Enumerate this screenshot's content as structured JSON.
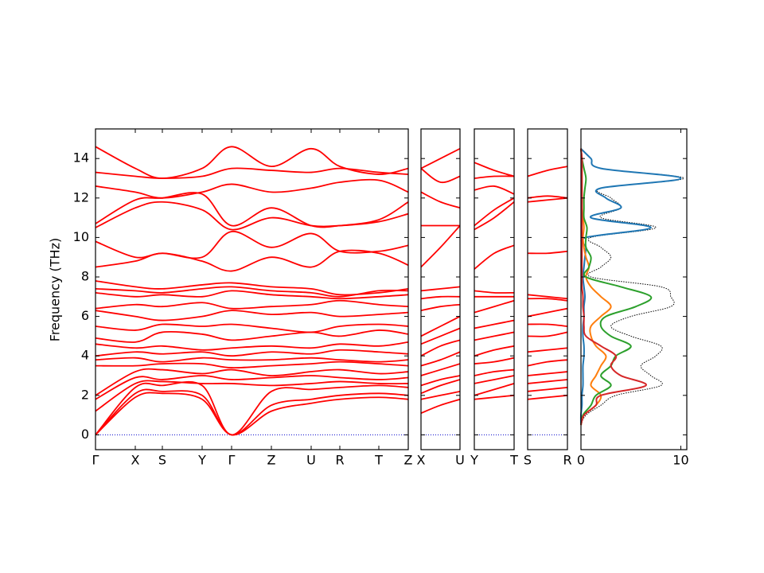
{
  "chart_data": {
    "type": "line",
    "ylabel": "Frequency (THz)",
    "ylim": [
      -0.75,
      15.5
    ],
    "yticks": [
      0,
      2,
      4,
      6,
      8,
      10,
      12,
      14
    ],
    "band_color": "#ff0000",
    "zero_line_color": "#0000cc",
    "panels": [
      {
        "x": [
          0,
          0.5,
          0.84,
          1.34,
          1.71,
          2.21,
          2.71,
          3.07,
          3.56,
          3.93
        ],
        "xlim": [
          0,
          3.93
        ],
        "xticks": [
          {
            "value": 0,
            "label": "Γ"
          },
          {
            "value": 0.5,
            "label": "X"
          },
          {
            "value": 0.84,
            "label": "S"
          },
          {
            "value": 1.34,
            "label": "Y"
          },
          {
            "value": 1.71,
            "label": "Γ"
          },
          {
            "value": 2.21,
            "label": "Z"
          },
          {
            "value": 2.71,
            "label": "U"
          },
          {
            "value": 3.07,
            "label": "R"
          },
          {
            "value": 3.56,
            "label": "T"
          },
          {
            "value": 3.93,
            "label": "Z"
          }
        ],
        "series": [
          {
            "values": [
              0,
              1.9,
              2.1,
              1.8,
              0,
              1.2,
              1.6,
              1.8,
              1.9,
              1.8
            ]
          },
          {
            "values": [
              0,
              2.1,
              2.2,
              2.0,
              0,
              1.5,
              1.8,
              2.0,
              2.1,
              2.0
            ]
          },
          {
            "values": [
              0,
              2.4,
              2.5,
              2.5,
              0,
              2.2,
              2.3,
              2.4,
              2.5,
              2.4
            ]
          },
          {
            "values": [
              1.2,
              2.6,
              2.7,
              2.6,
              2.6,
              2.5,
              2.6,
              2.7,
              2.6,
              2.6
            ]
          },
          {
            "values": [
              1.8,
              2.9,
              2.8,
              3.0,
              2.8,
              2.9,
              3.0,
              2.9,
              2.8,
              2.9
            ]
          },
          {
            "values": [
              2.0,
              3.2,
              3.3,
              3.1,
              3.3,
              3.0,
              3.2,
              3.3,
              3.1,
              3.2
            ]
          },
          {
            "values": [
              3.5,
              3.5,
              3.6,
              3.6,
              3.4,
              3.5,
              3.6,
              3.7,
              3.6,
              3.5
            ]
          },
          {
            "values": [
              3.8,
              3.9,
              3.7,
              3.9,
              3.8,
              3.8,
              3.9,
              3.8,
              3.7,
              3.8
            ]
          },
          {
            "values": [
              4.0,
              4.2,
              4.1,
              4.2,
              4.0,
              4.2,
              4.1,
              4.3,
              4.2,
              4.1
            ]
          },
          {
            "values": [
              4.6,
              4.4,
              4.5,
              4.3,
              4.4,
              4.5,
              4.4,
              4.6,
              4.5,
              4.7
            ]
          },
          {
            "values": [
              4.9,
              4.7,
              5.2,
              5.1,
              4.8,
              5.0,
              5.2,
              5.0,
              5.3,
              5.1
            ]
          },
          {
            "values": [
              5.5,
              5.3,
              5.6,
              5.5,
              5.6,
              5.4,
              5.2,
              5.5,
              5.6,
              5.5
            ]
          },
          {
            "values": [
              6.3,
              6.0,
              5.8,
              6.0,
              6.3,
              6.1,
              6.2,
              6.0,
              6.1,
              6.2
            ]
          },
          {
            "values": [
              6.4,
              6.6,
              6.5,
              6.7,
              6.4,
              6.5,
              6.6,
              6.8,
              6.6,
              6.5
            ]
          },
          {
            "values": [
              7.2,
              7.0,
              7.1,
              7.0,
              7.3,
              7.1,
              7.0,
              6.9,
              7.0,
              7.1
            ]
          },
          {
            "values": [
              7.4,
              7.3,
              7.2,
              7.4,
              7.5,
              7.3,
              7.2,
              7.0,
              7.3,
              7.3
            ]
          },
          {
            "values": [
              7.8,
              7.5,
              7.4,
              7.6,
              7.7,
              7.5,
              7.4,
              7.1,
              7.2,
              7.4
            ]
          },
          {
            "values": [
              8.5,
              8.8,
              9.2,
              8.8,
              8.3,
              9.0,
              8.5,
              9.3,
              9.2,
              8.6
            ]
          },
          {
            "values": [
              9.8,
              9.0,
              9.2,
              9.0,
              10.3,
              9.5,
              10.2,
              9.3,
              9.3,
              9.6
            ]
          },
          {
            "values": [
              10.5,
              11.5,
              11.8,
              11.4,
              10.4,
              11.0,
              10.6,
              10.6,
              10.8,
              11.2
            ]
          },
          {
            "values": [
              10.7,
              11.9,
              12.0,
              12.2,
              10.6,
              11.5,
              10.6,
              10.6,
              10.9,
              11.8
            ]
          },
          {
            "values": [
              12.6,
              12.3,
              12.0,
              12.3,
              12.7,
              12.3,
              12.5,
              12.8,
              12.9,
              12.3
            ]
          },
          {
            "values": [
              13.3,
              13.1,
              13.0,
              13.1,
              13.5,
              13.4,
              13.3,
              13.5,
              13.3,
              13.2
            ]
          },
          {
            "values": [
              14.6,
              13.5,
              13.0,
              13.5,
              14.6,
              13.6,
              14.5,
              13.6,
              13.2,
              13.5
            ]
          }
        ]
      },
      {
        "x": [
          0,
          0.245,
          0.49
        ],
        "xlim": [
          0,
          0.49
        ],
        "xticks": [
          {
            "value": 0,
            "label": "X"
          },
          {
            "value": 0.49,
            "label": "U"
          }
        ],
        "series": [
          {
            "values": [
              1.1,
              1.5,
              1.8
            ]
          },
          {
            "values": [
              1.8,
              2.0,
              2.2
            ]
          },
          {
            "values": [
              2.1,
              2.5,
              2.8
            ]
          },
          {
            "values": [
              2.5,
              2.8,
              3.0
            ]
          },
          {
            "values": [
              3.0,
              3.3,
              3.6
            ]
          },
          {
            "values": [
              3.5,
              3.8,
              4.2
            ]
          },
          {
            "values": [
              4.0,
              4.5,
              4.8
            ]
          },
          {
            "values": [
              4.6,
              5.0,
              5.4
            ]
          },
          {
            "values": [
              5.0,
              5.5,
              6.0
            ]
          },
          {
            "values": [
              6.3,
              6.5,
              6.6
            ]
          },
          {
            "values": [
              6.9,
              7.0,
              7.0
            ]
          },
          {
            "values": [
              7.3,
              7.4,
              7.5
            ]
          },
          {
            "values": [
              8.5,
              9.5,
              10.6
            ]
          },
          {
            "values": [
              10.6,
              10.6,
              10.6
            ]
          },
          {
            "values": [
              12.3,
              11.8,
              11.5
            ]
          },
          {
            "values": [
              13.5,
              12.8,
              13.1
            ]
          },
          {
            "values": [
              13.5,
              14.0,
              14.5
            ]
          }
        ]
      },
      {
        "x": [
          0,
          0.245,
          0.49
        ],
        "xlim": [
          0,
          0.49
        ],
        "xticks": [
          {
            "value": 0,
            "label": "Y"
          },
          {
            "value": 0.49,
            "label": "T"
          }
        ],
        "series": [
          {
            "values": [
              1.8,
              1.9,
              2.0
            ]
          },
          {
            "values": [
              2.0,
              2.3,
              2.6
            ]
          },
          {
            "values": [
              2.6,
              2.8,
              3.0
            ]
          },
          {
            "values": [
              3.0,
              3.2,
              3.3
            ]
          },
          {
            "values": [
              3.6,
              3.7,
              3.9
            ]
          },
          {
            "values": [
              4.0,
              4.3,
              4.5
            ]
          },
          {
            "values": [
              4.8,
              5.0,
              5.2
            ]
          },
          {
            "values": [
              5.4,
              5.6,
              5.8
            ]
          },
          {
            "values": [
              6.2,
              6.5,
              6.8
            ]
          },
          {
            "values": [
              7.0,
              7.0,
              7.0
            ]
          },
          {
            "values": [
              7.3,
              7.2,
              7.2
            ]
          },
          {
            "values": [
              8.4,
              9.2,
              9.6
            ]
          },
          {
            "values": [
              10.4,
              11.0,
              11.8
            ]
          },
          {
            "values": [
              10.6,
              11.4,
              12.0
            ]
          },
          {
            "values": [
              12.4,
              12.6,
              12.2
            ]
          },
          {
            "values": [
              13.0,
              13.1,
              13.1
            ]
          },
          {
            "values": [
              13.8,
              13.4,
              13.1
            ]
          }
        ]
      },
      {
        "x": [
          0,
          0.245,
          0.49
        ],
        "xlim": [
          0,
          0.49
        ],
        "xticks": [
          {
            "value": 0,
            "label": "S"
          },
          {
            "value": 0.49,
            "label": "R"
          }
        ],
        "series": [
          {
            "values": [
              1.8,
              1.9,
              2.0
            ]
          },
          {
            "values": [
              2.2,
              2.3,
              2.4
            ]
          },
          {
            "values": [
              2.6,
              2.7,
              2.8
            ]
          },
          {
            "values": [
              3.0,
              3.1,
              3.2
            ]
          },
          {
            "values": [
              3.5,
              3.7,
              3.8
            ]
          },
          {
            "values": [
              4.2,
              4.3,
              4.4
            ]
          },
          {
            "values": [
              5.0,
              5.0,
              5.2
            ]
          },
          {
            "values": [
              5.6,
              5.6,
              5.5
            ]
          },
          {
            "values": [
              6.0,
              6.2,
              6.4
            ]
          },
          {
            "values": [
              6.9,
              6.9,
              6.8
            ]
          },
          {
            "values": [
              7.1,
              7.0,
              6.9
            ]
          },
          {
            "values": [
              9.2,
              9.2,
              9.3
            ]
          },
          {
            "values": [
              11.8,
              11.9,
              12.0
            ]
          },
          {
            "values": [
              12.0,
              12.1,
              12.0
            ]
          },
          {
            "values": [
              13.1,
              13.4,
              13.6
            ]
          }
        ]
      }
    ],
    "dos": {
      "xlim": [
        0,
        10.6
      ],
      "xticks": [
        0,
        10
      ],
      "y": [
        0.5,
        1,
        1.5,
        2,
        2.5,
        3,
        3.5,
        4,
        4.5,
        5,
        5.5,
        6,
        6.5,
        7,
        7.5,
        8,
        8.5,
        9,
        9.5,
        10,
        10.5,
        11,
        11.5,
        12,
        12.5,
        13,
        13.5,
        14,
        14.5
      ],
      "series": [
        {
          "color": "#000000",
          "dotted": true,
          "values": [
            0,
            0.5,
            2,
            3.5,
            8,
            7,
            6,
            7.5,
            8,
            5,
            3,
            5,
            9,
            9,
            8,
            1,
            2,
            3,
            2,
            1,
            7.5,
            2,
            4,
            3,
            2,
            10.3,
            2,
            1,
            0
          ]
        },
        {
          "color": "#1f77b4",
          "values": [
            0,
            0,
            0.1,
            0.1,
            0.2,
            0.2,
            0.2,
            0.3,
            0.3,
            0.2,
            0.2,
            0.3,
            0.3,
            0.4,
            0.3,
            0.2,
            0.3,
            0.4,
            0.5,
            0.5,
            7,
            1,
            4,
            2.5,
            2,
            10,
            2,
            1,
            0
          ]
        },
        {
          "color": "#ff7f0e",
          "values": [
            0,
            0.3,
            1.5,
            2,
            1,
            1.5,
            2,
            2.5,
            1.5,
            1,
            1,
            2,
            3,
            2,
            1,
            0.5,
            0.8,
            0.5,
            0.3,
            0.2,
            0.3,
            0.2,
            0.1,
            0.1,
            0.1,
            0.1,
            0.1,
            0.1,
            0
          ]
        },
        {
          "color": "#2ca02c",
          "values": [
            0,
            0.2,
            1,
            1.5,
            3,
            2,
            3,
            3.5,
            5,
            3,
            2,
            2.5,
            5.5,
            7,
            4,
            0.5,
            0.8,
            1,
            0.5,
            0.5,
            0.6,
            0.3,
            0.3,
            0.3,
            0.4,
            0.5,
            0.3,
            0.1,
            0
          ]
        },
        {
          "color": "#d62728",
          "values": [
            0,
            0.3,
            1.5,
            2,
            6.5,
            4,
            3,
            3.5,
            2,
            0.5,
            0.3,
            0.3,
            0.2,
            0.2,
            0.1,
            0.1,
            0.1,
            0.1,
            0.1,
            0.1,
            0.1,
            0.1,
            0.1,
            0.1,
            0.1,
            0.1,
            0.1,
            0.1,
            0
          ]
        }
      ]
    }
  }
}
